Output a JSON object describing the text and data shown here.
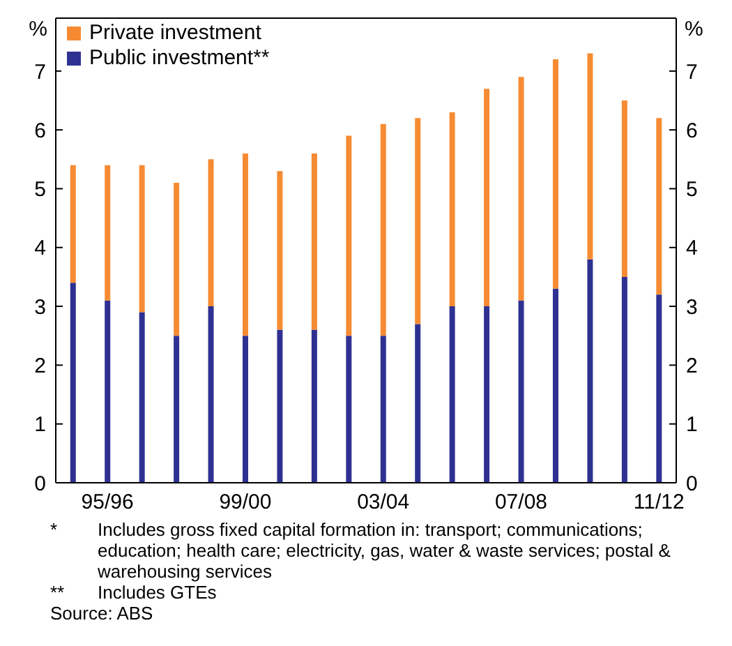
{
  "chart_data": {
    "type": "bar",
    "stacked": true,
    "categories": [
      null,
      "95/96",
      null,
      null,
      null,
      "99/00",
      null,
      null,
      null,
      "03/04",
      null,
      null,
      null,
      "07/08",
      null,
      null,
      null,
      "11/12"
    ],
    "series": [
      {
        "name": "Public investment**",
        "color": "#2e3192",
        "values": [
          3.4,
          3.1,
          2.9,
          2.5,
          3.0,
          2.5,
          2.6,
          2.6,
          2.5,
          2.5,
          2.7,
          3.0,
          3.0,
          3.1,
          3.3,
          3.8,
          3.5,
          3.2
        ]
      },
      {
        "name": "Private investment",
        "color": "#f68b33",
        "values": [
          2.0,
          2.3,
          2.5,
          2.6,
          2.5,
          3.1,
          2.7,
          3.0,
          3.4,
          3.6,
          3.5,
          3.3,
          3.7,
          3.8,
          3.9,
          3.5,
          3.0,
          3.0
        ]
      }
    ],
    "ylabel": "%",
    "y2label": "%",
    "ylim": [
      0,
      7.9
    ],
    "yticks": [
      0,
      1,
      2,
      3,
      4,
      5,
      6,
      7
    ],
    "y2lim": [
      0,
      7.9
    ],
    "y2ticks": [
      0,
      1,
      2,
      3,
      4,
      5,
      6,
      7
    ],
    "legend": "top left",
    "annotations": [
      "*\tIncludes gross fixed capital formation in: transport; communications; education; health care; electricity, gas, water & waste services; postal & warehousing services",
      "**\tIncludes GTEs",
      "Source: ABS"
    ]
  }
}
